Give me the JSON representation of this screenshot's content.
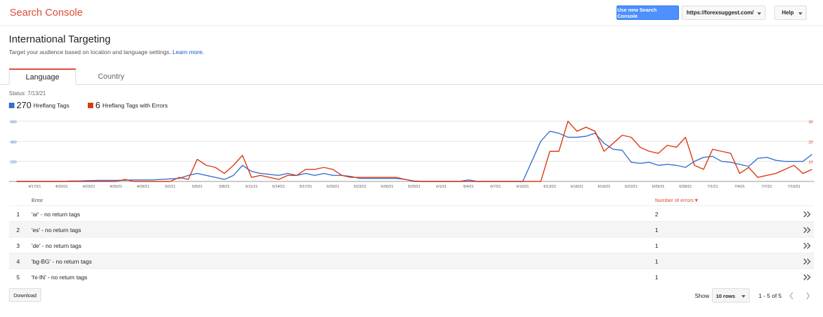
{
  "header": {
    "logo": "Search Console",
    "new_console_button": "Use new Search Console",
    "site": "https://forexsuggest.com/",
    "help": "Help"
  },
  "page": {
    "title": "International Targeting",
    "description": "Target your audience based on location and language settings.",
    "learn_more": "Learn more."
  },
  "tabs": [
    "Language",
    "Country"
  ],
  "status": "Status: 7/13/21",
  "chart_data": {
    "type": "line",
    "categories": [
      null,
      null,
      "4/17/21",
      null,
      null,
      "4/20/21",
      null,
      null,
      "4/23/21",
      null,
      null,
      "4/26/21",
      null,
      null,
      "4/29/21",
      null,
      null,
      "5/2/21",
      null,
      null,
      "5/5/21",
      null,
      null,
      "5/8/21",
      null,
      null,
      "5/11/21",
      null,
      null,
      "5/14/21",
      null,
      null,
      "5/17/21",
      null,
      null,
      "5/20/21",
      null,
      null,
      "5/23/21",
      null,
      null,
      "5/26/21",
      null,
      null,
      "5/29/21",
      null,
      null,
      "6/1/21",
      null,
      null,
      "6/4/21",
      null,
      null,
      "6/7/21",
      null,
      null,
      "6/10/21",
      null,
      null,
      "6/13/21",
      null,
      null,
      "6/16/21",
      null,
      null,
      "6/19/21",
      null,
      null,
      "6/22/21",
      null,
      null,
      "6/25/21",
      null,
      null,
      "6/28/21",
      null,
      null,
      "7/1/21",
      null,
      null,
      "7/4/21",
      null,
      null,
      "7/7/21",
      null,
      null,
      "7/10/21",
      null,
      null
    ],
    "series": [
      {
        "name": "Hreflang Tags",
        "total": 270,
        "color": "#3a6fd0",
        "values": [
          0,
          0,
          0,
          0,
          0,
          0,
          5,
          5,
          8,
          10,
          10,
          10,
          12,
          15,
          15,
          15,
          20,
          25,
          30,
          60,
          80,
          60,
          40,
          20,
          60,
          160,
          100,
          80,
          70,
          60,
          80,
          60,
          80,
          60,
          80,
          60,
          60,
          50,
          30,
          30,
          30,
          30,
          30,
          20,
          5,
          0,
          0,
          0,
          0,
          0,
          15,
          0,
          0,
          0,
          0,
          0,
          0,
          200,
          400,
          500,
          480,
          440,
          440,
          450,
          480,
          380,
          320,
          310,
          190,
          180,
          190,
          160,
          170,
          160,
          140,
          200,
          240,
          250,
          200,
          190,
          170,
          150,
          230,
          240,
          210,
          200,
          200,
          200,
          270
        ]
      },
      {
        "name": "Hreflang Tags with Errors",
        "total": 6,
        "color": "#dc3912",
        "axis": "y2",
        "values": [
          0,
          0,
          0,
          0,
          0,
          0,
          0,
          0,
          0,
          0,
          0,
          0,
          1,
          0,
          0,
          0,
          0,
          0,
          2,
          1,
          11,
          8,
          7,
          4,
          8,
          13,
          2,
          3,
          2,
          1,
          3,
          3,
          6,
          6,
          7,
          6,
          3,
          2,
          2,
          2,
          2,
          2,
          2,
          1,
          0,
          0,
          0,
          0,
          0,
          0,
          0,
          0,
          0,
          0,
          0,
          0,
          0,
          0,
          0,
          15,
          15,
          30,
          25,
          27,
          25,
          15,
          19,
          23,
          22,
          17,
          15,
          14,
          18,
          17,
          22,
          8,
          6,
          16,
          15,
          14,
          4,
          7,
          2,
          3,
          4,
          6,
          8,
          4,
          6
        ]
      }
    ],
    "ylim": [
      0,
      600
    ],
    "yticks": [
      200,
      400,
      600
    ],
    "y2lim": [
      0,
      30
    ],
    "y2ticks": [
      10,
      20,
      30
    ],
    "grid": true
  },
  "table": {
    "headers": [
      "Error",
      "Number of errors▼"
    ],
    "rows": [
      {
        "rank": 1,
        "error": "'ar' - no return tags",
        "count": 2
      },
      {
        "rank": 2,
        "error": "'es' - no return tags",
        "count": 1
      },
      {
        "rank": 3,
        "error": "'de' - no return tags",
        "count": 1
      },
      {
        "rank": 4,
        "error": "'bg-BG' - no return tags",
        "count": 1
      },
      {
        "rank": 5,
        "error": "'hi-IN' - no return tags",
        "count": 1
      }
    ]
  },
  "footer": {
    "download": "Download",
    "show": "Show",
    "rows_select": "10 rows",
    "pagination": "1 - 5 of 5"
  }
}
